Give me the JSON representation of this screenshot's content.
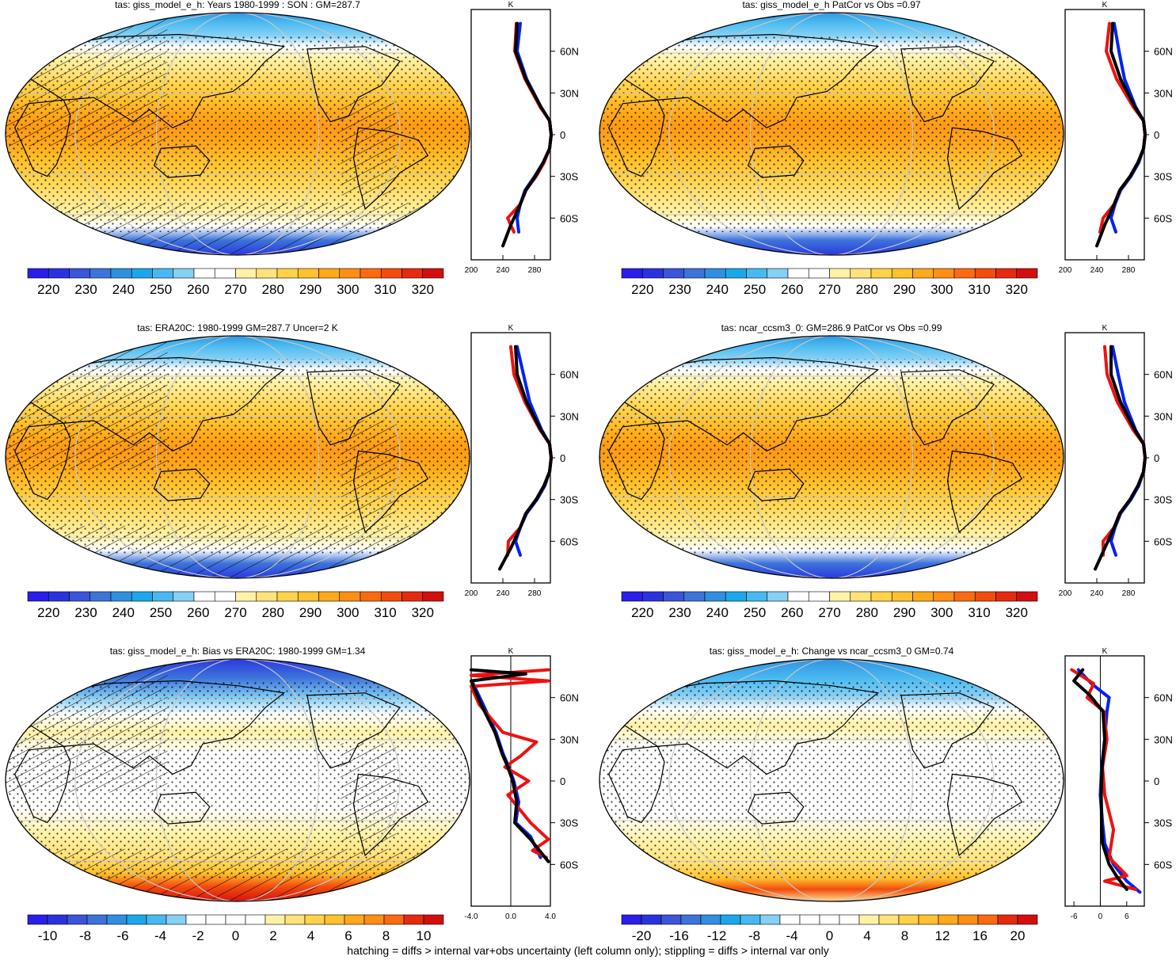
{
  "footnote": "hatching = diffs > internal var+obs uncertainty (left column only); stippling = diffs > internal var only",
  "lat_axis_labels": [
    "60N",
    "30N",
    "0",
    "30S",
    "60S"
  ],
  "profile_unit": "K",
  "colors": {
    "obs_line": "#0022ee",
    "model_line": "#ee1111",
    "mean_line": "#000000",
    "coast": "#000000",
    "graticule": "#c8c8c8"
  },
  "chart_data": [
    {
      "type": "heatmap",
      "panel": "row1-left",
      "title": "tas: giss_model_e_h: Years 1980-1999 : SON : GM=287.7",
      "colorbar": {
        "labels": [
          "220",
          "230",
          "240",
          "250",
          "260",
          "270",
          "280",
          "290",
          "300",
          "310",
          "320"
        ],
        "scheme": "absolute"
      },
      "hatching": true,
      "stippling": true,
      "field": "absolute",
      "profile": {
        "xlim": [
          200,
          300
        ],
        "xticks": [
          "200",
          "240",
          "280"
        ],
        "zero_line": false,
        "series": [
          {
            "color": "#0022ee",
            "x": [
              260,
              258,
              262,
              268,
              280,
              291,
              299,
              301,
              299,
              288,
              270,
              258,
              262
            ],
            "lat": [
              -70,
              -60,
              -50,
              -40,
              -30,
              -20,
              -10,
              0,
              10,
              20,
              40,
              60,
              80
            ]
          },
          {
            "color": "#ee1111",
            "x": [
              254,
              246,
              262,
              269,
              282,
              292,
              299,
              301,
              299,
              287,
              268,
              255,
              257
            ],
            "lat": [
              -70,
              -60,
              -50,
              -40,
              -30,
              -20,
              -10,
              0,
              10,
              20,
              40,
              60,
              80
            ]
          },
          {
            "color": "#000000",
            "x": [
              240,
              250,
              262,
              269,
              281,
              291,
              299,
              301,
              299,
              288,
              269,
              256,
              258
            ],
            "lat": [
              -80,
              -65,
              -50,
              -40,
              -30,
              -20,
              -10,
              0,
              10,
              20,
              40,
              60,
              80
            ]
          }
        ]
      }
    },
    {
      "type": "heatmap",
      "panel": "row1-right",
      "title": "tas: giss_model_e_h PatCor vs Obs =0.97",
      "colorbar": {
        "labels": [
          "220",
          "230",
          "240",
          "250",
          "260",
          "270",
          "280",
          "290",
          "300",
          "310",
          "320"
        ],
        "scheme": "absolute"
      },
      "hatching": false,
      "stippling": true,
      "field": "absolute",
      "profile": {
        "xlim": [
          200,
          300
        ],
        "xticks": [
          "200",
          "240",
          "280"
        ],
        "zero_line": false,
        "series": [
          {
            "color": "#0022ee",
            "x": [
              264,
              258,
              263,
              270,
              283,
              293,
              299,
              301,
              299,
              289,
              275,
              268,
              262
            ],
            "lat": [
              -70,
              -60,
              -50,
              -40,
              -30,
              -20,
              -10,
              0,
              10,
              20,
              40,
              60,
              80
            ]
          },
          {
            "color": "#ee1111",
            "x": [
              244,
              248,
              262,
              269,
              282,
              292,
              299,
              301,
              299,
              286,
              265,
              252,
              256
            ],
            "lat": [
              -70,
              -60,
              -50,
              -40,
              -30,
              -20,
              -10,
              0,
              10,
              20,
              40,
              60,
              80
            ]
          },
          {
            "color": "#000000",
            "x": [
              240,
              250,
              262,
              269,
              282,
              292,
              299,
              301,
              299,
              288,
              270,
              258,
              260
            ],
            "lat": [
              -80,
              -65,
              -50,
              -40,
              -30,
              -20,
              -10,
              0,
              10,
              20,
              40,
              60,
              80
            ]
          }
        ]
      }
    },
    {
      "type": "heatmap",
      "panel": "row2-left",
      "title": "tas: ERA20C: 1980-1999 GM=287.7 Uncer=2 K",
      "colorbar": {
        "labels": [
          "220",
          "230",
          "240",
          "250",
          "260",
          "270",
          "280",
          "290",
          "300",
          "310",
          "320"
        ],
        "scheme": "absolute"
      },
      "hatching": true,
      "stippling": true,
      "field": "absolute",
      "profile": {
        "xlim": [
          200,
          300
        ],
        "xticks": [
          "200",
          "240",
          "280"
        ],
        "zero_line": false,
        "series": [
          {
            "color": "#0022ee",
            "x": [
              262,
              256,
              262,
              270,
              283,
              293,
              299,
              301,
              299,
              289,
              274,
              266,
              258
            ],
            "lat": [
              -70,
              -60,
              -50,
              -40,
              -30,
              -20,
              -10,
              0,
              10,
              20,
              40,
              60,
              80
            ]
          },
          {
            "color": "#ee1111",
            "x": [
              246,
              247,
              262,
              269,
              282,
              292,
              299,
              301,
              299,
              287,
              268,
              254,
              250
            ],
            "lat": [
              -70,
              -60,
              -50,
              -40,
              -30,
              -20,
              -10,
              0,
              10,
              20,
              40,
              60,
              80
            ]
          },
          {
            "color": "#000000",
            "x": [
              236,
              250,
              262,
              269,
              282,
              292,
              299,
              301,
              299,
              288,
              270,
              258,
              256
            ],
            "lat": [
              -80,
              -65,
              -50,
              -40,
              -30,
              -20,
              -10,
              0,
              10,
              20,
              40,
              60,
              80
            ]
          }
        ]
      }
    },
    {
      "type": "heatmap",
      "panel": "row2-right",
      "title": "tas: ncar_ccsm3_0: GM=286.9 PatCor vs Obs =0.99",
      "colorbar": {
        "labels": [
          "220",
          "230",
          "240",
          "250",
          "260",
          "270",
          "280",
          "290",
          "300",
          "310",
          "320"
        ],
        "scheme": "absolute"
      },
      "hatching": false,
      "stippling": true,
      "field": "absolute",
      "profile": {
        "xlim": [
          200,
          300
        ],
        "xticks": [
          "200",
          "240",
          "280"
        ],
        "zero_line": false,
        "series": [
          {
            "color": "#0022ee",
            "x": [
              264,
              258,
              263,
              270,
              283,
              293,
              299,
              301,
              299,
              289,
              275,
              267,
              260
            ],
            "lat": [
              -70,
              -60,
              -50,
              -40,
              -30,
              -20,
              -10,
              0,
              10,
              20,
              40,
              60,
              80
            ]
          },
          {
            "color": "#ee1111",
            "x": [
              248,
              248,
              262,
              269,
              282,
              292,
              299,
              301,
              299,
              286,
              266,
              253,
              250
            ],
            "lat": [
              -70,
              -60,
              -50,
              -40,
              -30,
              -20,
              -10,
              0,
              10,
              20,
              40,
              60,
              80
            ]
          },
          {
            "color": "#000000",
            "x": [
              238,
              250,
              262,
              269,
              282,
              292,
              299,
              301,
              299,
              288,
              270,
              258,
              258
            ],
            "lat": [
              -80,
              -65,
              -50,
              -40,
              -30,
              -20,
              -10,
              0,
              10,
              20,
              40,
              60,
              80
            ]
          }
        ]
      }
    },
    {
      "type": "heatmap",
      "panel": "row3-left",
      "title": "tas: giss_model_e_h: Bias vs ERA20C: 1980-1999  GM=1.34",
      "colorbar": {
        "labels": [
          "-10",
          "-8",
          "-6",
          "-4",
          "-2",
          "0",
          "2",
          "4",
          "6",
          "8",
          "10"
        ],
        "scheme": "diff"
      },
      "hatching": true,
      "stippling": true,
      "field": "bias",
      "profile": {
        "xlim": [
          -4,
          4
        ],
        "xticks": [
          "-4.0",
          "0.0",
          "4.0"
        ],
        "zero_line": true,
        "series": [
          {
            "color": "#0022ee",
            "x": [
              3.0,
              2.0,
              0.5,
              0.8,
              0.3,
              -0.2,
              -0.8,
              -1.5,
              -2.8,
              -3.8
            ],
            "lat": [
              -55,
              -40,
              -30,
              -15,
              0,
              10,
              20,
              35,
              55,
              70
            ]
          },
          {
            "color": "#ee1111",
            "x": [
              3.6,
              2.2,
              3.8,
              2.0,
              -0.3,
              1.8,
              -0.6,
              1.0,
              2.6,
              -0.8,
              -3.2,
              -4.0,
              3.8,
              -4.0,
              3.8
            ],
            "lat": [
              -55,
              -50,
              -42,
              -30,
              -10,
              0,
              10,
              18,
              28,
              35,
              55,
              68,
              72,
              76,
              80
            ]
          },
          {
            "color": "#000000",
            "x": [
              3.8,
              2.0,
              0.4,
              0.6,
              0.2,
              -0.3,
              -0.9,
              -1.6,
              -3.0,
              -4.0,
              1.5,
              -4.0
            ],
            "lat": [
              -58,
              -42,
              -30,
              -15,
              0,
              10,
              20,
              35,
              55,
              72,
              77,
              80
            ]
          }
        ]
      }
    },
    {
      "type": "heatmap",
      "panel": "row3-right",
      "title": "tas: giss_model_e_h: Change vs ncar_ccsm3_0 GM=0.74",
      "colorbar": {
        "labels": [
          "-20",
          "-16",
          "-12",
          "-8",
          "-4",
          "0",
          "4",
          "8",
          "12",
          "16",
          "20"
        ],
        "scheme": "diff"
      },
      "hatching": false,
      "stippling": true,
      "field": "change",
      "profile": {
        "xlim": [
          -8,
          10
        ],
        "xticks": [
          "-6",
          "0",
          "6"
        ],
        "zero_line": true,
        "series": [
          {
            "color": "#0022ee",
            "x": [
              9.0,
              6.0,
              3.0,
              1.0,
              0.5,
              0.0,
              0.3,
              1.0,
              1.5,
              2.0,
              -2.0,
              -5.0
            ],
            "lat": [
              -80,
              -72,
              -60,
              -45,
              -30,
              -10,
              10,
              30,
              50,
              60,
              70,
              80
            ]
          },
          {
            "color": "#ee1111",
            "x": [
              8.0,
              1.0,
              6.0,
              2.0,
              3.0,
              1.0,
              0.5,
              1.5,
              0.8,
              -3.0,
              -1.5,
              -6.5
            ],
            "lat": [
              -78,
              -72,
              -68,
              -55,
              -35,
              -10,
              10,
              30,
              50,
              60,
              70,
              80
            ]
          },
          {
            "color": "#000000",
            "x": [
              6.0,
              4.0,
              2.0,
              0.5,
              0.3,
              0.2,
              0.4,
              1.0,
              0.6,
              -2.5,
              -6.0,
              -4.0
            ],
            "lat": [
              -78,
              -70,
              -60,
              -45,
              -30,
              -10,
              10,
              30,
              50,
              62,
              72,
              80
            ]
          }
        ]
      }
    }
  ]
}
